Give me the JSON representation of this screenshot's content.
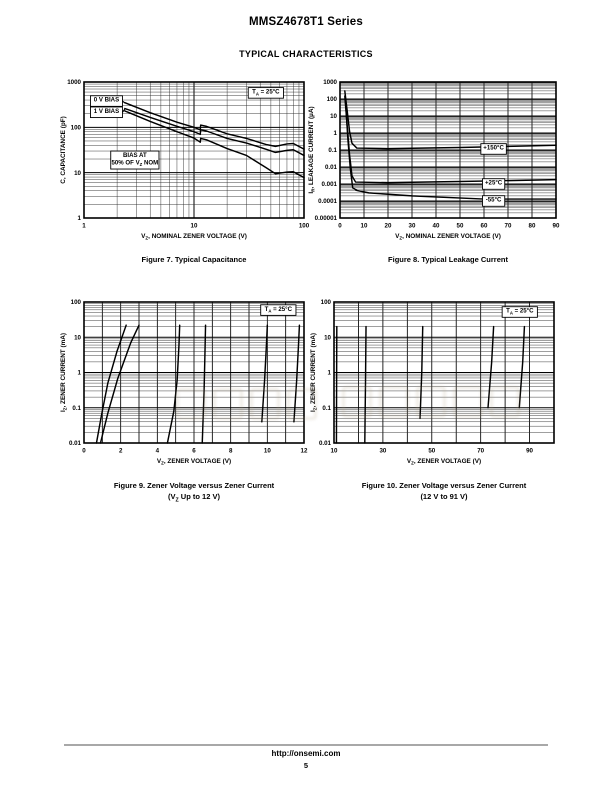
{
  "page": {
    "title": "MMSZ4678T1 Series",
    "section_heading": "TYPICAL CHARACTERISTICS",
    "footer": {
      "url": "http://onsemi.com",
      "page_number": "5"
    }
  },
  "chart_data": [
    {
      "id": "figure7",
      "type": "line",
      "caption_lines": [
        "Figure 7. Typical Capacitance"
      ],
      "xlabel": "V_{Z}, NOMINAL ZENER VOLTAGE (V)",
      "ylabel": "C, CAPACITANCE (pF)",
      "x_axis": {
        "scale": "log",
        "min": 1,
        "max": 100,
        "tick_labels": [
          "1",
          "10",
          "100"
        ]
      },
      "y_axis": {
        "scale": "log",
        "min": 1,
        "max": 1000,
        "tick_labels": [
          "1",
          "10",
          "100",
          "1000"
        ]
      },
      "annotations": [
        {
          "text": "T_{A} = 25°C",
          "x": 45,
          "y": 575,
          "boxed": true
        },
        {
          "text": "0 V BIAS",
          "x": 1.6,
          "y": 380,
          "boxed": true,
          "leader_to": [
            2.35,
            345
          ]
        },
        {
          "text": "1 V BIAS",
          "x": 1.6,
          "y": 215,
          "boxed": true,
          "leader_to": [
            2.35,
            252
          ]
        },
        {
          "text": "BIAS AT|50% OF V_{Z} NOM",
          "x": 2.9,
          "y": 19,
          "boxed": true
        }
      ],
      "series": [
        {
          "name": "0 V BIAS",
          "points": [
            [
              2.35,
              350
            ],
            [
              4,
              210
            ],
            [
              7,
              130
            ],
            [
              10,
              100
            ],
            [
              11.4,
              88
            ],
            [
              11.5,
              112
            ],
            [
              13,
              105
            ],
            [
              20,
              72
            ],
            [
              30,
              57
            ],
            [
              45,
              42
            ],
            [
              55,
              38
            ],
            [
              70,
              43
            ],
            [
              80,
              44
            ],
            [
              100,
              33
            ]
          ]
        },
        {
          "name": "1 V BIAS",
          "points": [
            [
              2.35,
              260
            ],
            [
              4,
              165
            ],
            [
              7,
              105
            ],
            [
              10,
              80
            ],
            [
              11.4,
              70
            ],
            [
              11.5,
              88
            ],
            [
              13,
              83
            ],
            [
              20,
              57
            ],
            [
              30,
              45
            ],
            [
              45,
              33
            ],
            [
              55,
              28
            ],
            [
              70,
              31
            ],
            [
              80,
              32
            ],
            [
              100,
              24
            ]
          ]
        },
        {
          "name": "BIAS AT 50% OF VZ NOM",
          "points": [
            [
              2.35,
              230
            ],
            [
              4,
              135
            ],
            [
              7,
              80
            ],
            [
              10,
              58
            ],
            [
              11.4,
              47
            ],
            [
              11.5,
              57
            ],
            [
              13,
              53
            ],
            [
              20,
              34
            ],
            [
              30,
              24
            ],
            [
              45,
              13
            ],
            [
              55,
              9.5
            ],
            [
              70,
              10.3
            ],
            [
              80,
              10.5
            ],
            [
              100,
              7.8
            ]
          ]
        }
      ]
    },
    {
      "id": "figure8",
      "type": "line",
      "caption_lines": [
        "Figure 8. Typical Leakage Current"
      ],
      "xlabel": "V_{Z}, NOMINAL ZENER VOLTAGE (V)",
      "ylabel": "I_{R}, LEAKAGE CURRENT (µA)",
      "x_axis": {
        "scale": "linear",
        "min": 0,
        "max": 90,
        "grid_step": 10,
        "tick_labels": [
          "0",
          "10",
          "20",
          "30",
          "40",
          "50",
          "60",
          "70",
          "80",
          "90"
        ]
      },
      "y_axis": {
        "scale": "log",
        "min": 1e-05,
        "max": 1000,
        "tick_labels": [
          "0.00001",
          "0.0001",
          "0.001",
          "0.01",
          "0.1",
          "1",
          "10",
          "100",
          "1000"
        ]
      },
      "annotations": [
        {
          "text": "+150°C",
          "x": 64,
          "y": 0.115,
          "boxed": true
        },
        {
          "text": "+25°C",
          "x": 64,
          "y": 0.001,
          "boxed": true
        },
        {
          "text": "-55°C",
          "x": 64,
          "y": 0.0001,
          "boxed": true
        }
      ],
      "series": [
        {
          "name": "+150°C",
          "points": [
            [
              2,
              300
            ],
            [
              3,
              20
            ],
            [
              4,
              1.2
            ],
            [
              5,
              0.25
            ],
            [
              7,
              0.13
            ],
            [
              20,
              0.12
            ],
            [
              50,
              0.14
            ],
            [
              90,
              0.19
            ]
          ]
        },
        {
          "name": "+25°C",
          "points": [
            [
              2,
              150
            ],
            [
              3,
              2.5
            ],
            [
              4,
              0.05
            ],
            [
              5,
              0.003
            ],
            [
              6.5,
              0.0013
            ],
            [
              20,
              0.0012
            ],
            [
              50,
              0.0014
            ],
            [
              90,
              0.0018
            ]
          ]
        },
        {
          "name": "-55°C",
          "points": [
            [
              2.3,
              80
            ],
            [
              3.3,
              0.4
            ],
            [
              4.3,
              0.008
            ],
            [
              5.3,
              0.0006
            ],
            [
              7,
              0.00042
            ],
            [
              12,
              0.0003
            ],
            [
              30,
              0.0002
            ],
            [
              60,
              0.00013
            ],
            [
              90,
              0.00013
            ]
          ]
        }
      ]
    },
    {
      "id": "figure9",
      "type": "line",
      "caption_lines": [
        "Figure 9. Zener Voltage versus Zener Current",
        "(V_{Z} Up to 12 V)"
      ],
      "xlabel": "V_{Z}, ZENER VOLTAGE (V)",
      "ylabel": "I_{Z}, ZENER CURRENT (mA)",
      "x_axis": {
        "scale": "linear",
        "min": 0,
        "max": 12,
        "grid_step": 1,
        "tick_labels": [
          "0",
          "2",
          "4",
          "6",
          "8",
          "10",
          "12"
        ]
      },
      "y_axis": {
        "scale": "log",
        "min": 0.01,
        "max": 100,
        "tick_labels": [
          "0.01",
          "0.1",
          "1",
          "10",
          "100"
        ]
      },
      "annotations": [
        {
          "text": "T_{A} = 25°C",
          "x": 10.6,
          "y": 59,
          "boxed": true
        }
      ],
      "series": [
        {
          "name": "zener-curve-1",
          "points": [
            [
              0.68,
              0.01
            ],
            [
              0.95,
              0.06
            ],
            [
              1.3,
              0.5
            ],
            [
              1.8,
              4
            ],
            [
              2.3,
              22
            ]
          ]
        },
        {
          "name": "zener-curve-2",
          "points": [
            [
              0.9,
              0.01
            ],
            [
              1.3,
              0.07
            ],
            [
              1.85,
              0.7
            ],
            [
              2.55,
              7
            ],
            [
              3.0,
              22
            ]
          ]
        },
        {
          "name": "zener-curve-3",
          "points": [
            [
              4.55,
              0.01
            ],
            [
              4.9,
              0.08
            ],
            [
              5.08,
              0.6
            ],
            [
              5.18,
              6
            ],
            [
              5.22,
              22
            ]
          ]
        },
        {
          "name": "zener-curve-4",
          "points": [
            [
              6.45,
              0.01
            ],
            [
              6.55,
              0.3
            ],
            [
              6.6,
              4
            ],
            [
              6.63,
              22
            ]
          ]
        },
        {
          "name": "zener-curve-5",
          "points": [
            [
              9.7,
              0.04
            ],
            [
              9.85,
              0.6
            ],
            [
              9.95,
              6
            ],
            [
              10.0,
              22
            ]
          ]
        },
        {
          "name": "zener-curve-6",
          "points": [
            [
              11.45,
              0.04
            ],
            [
              11.6,
              0.6
            ],
            [
              11.7,
              6
            ],
            [
              11.75,
              22
            ]
          ]
        }
      ]
    },
    {
      "id": "figure10",
      "type": "line",
      "caption_lines": [
        "Figure 10. Zener Voltage versus Zener Current",
        "(12 V to 91 V)"
      ],
      "xlabel": "V_{Z}, ZENER VOLTAGE (V)",
      "ylabel": "I_{Z}, ZENER CURRENT (mA)",
      "x_axis": {
        "scale": "linear",
        "min": 10,
        "max": 100,
        "grid_step": 10,
        "tick_labels": [
          "10",
          "30",
          "50",
          "70",
          "90"
        ]
      },
      "y_axis": {
        "scale": "log",
        "min": 0.01,
        "max": 100,
        "tick_labels": [
          "0.01",
          "0.1",
          "1",
          "10",
          "100"
        ]
      },
      "annotations": [
        {
          "text": "T_{A} = 25°C",
          "x": 86,
          "y": 52,
          "boxed": true
        }
      ],
      "series": [
        {
          "name": "zener-curve-1",
          "points": [
            [
              11,
              0.01
            ],
            [
              11.08,
              1
            ],
            [
              11.15,
              20
            ]
          ]
        },
        {
          "name": "zener-curve-2",
          "points": [
            [
              22.6,
              0.01
            ],
            [
              22.9,
              0.6
            ],
            [
              23.1,
              20
            ]
          ]
        },
        {
          "name": "zener-curve-3",
          "points": [
            [
              45.2,
              0.05
            ],
            [
              45.9,
              1
            ],
            [
              46.3,
              20
            ]
          ]
        },
        {
          "name": "zener-curve-4",
          "points": [
            [
              73,
              0.1
            ],
            [
              74.5,
              2
            ],
            [
              75.3,
              20
            ]
          ]
        },
        {
          "name": "zener-curve-5",
          "points": [
            [
              85.8,
              0.1
            ],
            [
              87.2,
              2
            ],
            [
              87.9,
              20
            ]
          ]
        }
      ]
    }
  ]
}
